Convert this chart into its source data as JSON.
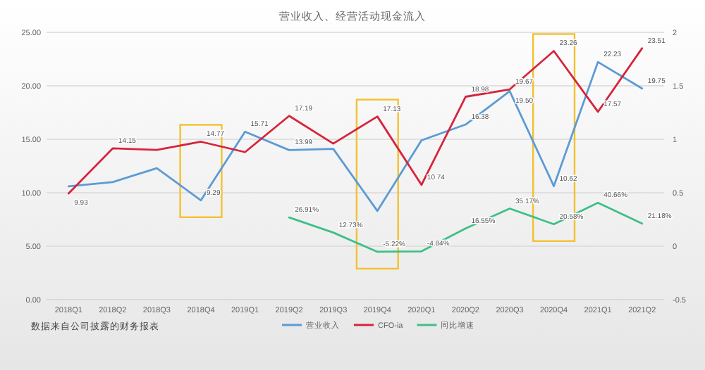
{
  "chart_data": {
    "type": "line",
    "title": "营业收入、经营活动现金流入",
    "annotations": [
      "数据来自公司披露的财务报表"
    ],
    "categories": [
      "2018Q1",
      "2018Q2",
      "2018Q3",
      "2018Q4",
      "2019Q1",
      "2019Q2",
      "2019Q3",
      "2019Q4",
      "2020Q1",
      "2020Q2",
      "2020Q3",
      "2020Q4",
      "2021Q1",
      "2021Q2"
    ],
    "ylim": [
      0,
      25
    ],
    "yticks": [
      {
        "value": 0,
        "label": "0.00"
      },
      {
        "value": 5,
        "label": "5.00"
      },
      {
        "value": 10,
        "label": "10.00"
      },
      {
        "value": 15,
        "label": "15.00"
      },
      {
        "value": 20,
        "label": "20.00"
      },
      {
        "value": 25,
        "label": "25.00"
      }
    ],
    "y2lim": [
      -0.5,
      2
    ],
    "y2ticks": [
      -0.5,
      0,
      0.5,
      1,
      1.5,
      2
    ],
    "grid": "y",
    "legend": "bottom",
    "marker": "none",
    "series": [
      {
        "name": "营业收入",
        "color": "#5b9bd5",
        "values": [
          10.6,
          11.0,
          12.3,
          9.29,
          15.71,
          13.99,
          14.1,
          8.3,
          14.9,
          16.38,
          19.5,
          10.62,
          22.23,
          19.75
        ],
        "value_labels": [
          null,
          null,
          null,
          "9.29",
          "15.71",
          "13.99",
          null,
          null,
          null,
          "16.38",
          "19.50",
          "10.62",
          "22.23",
          "19.75"
        ]
      },
      {
        "name": "CFO-ia",
        "color": "#d6243c",
        "values": [
          9.93,
          14.15,
          14.0,
          14.77,
          13.8,
          17.19,
          14.6,
          17.13,
          10.74,
          18.98,
          19.67,
          23.26,
          17.57,
          23.51
        ],
        "value_labels": [
          "9.93",
          "14.15",
          null,
          "14.77",
          null,
          "17.19",
          null,
          "17.13",
          "10.74",
          "18.98",
          "19.67",
          "23.26",
          "17.57",
          "23.51"
        ]
      },
      {
        "name": "同比增速",
        "color": "#3fbf86",
        "axis": "y2",
        "values": [
          null,
          null,
          null,
          null,
          null,
          0.2691,
          0.1273,
          -0.0522,
          -0.0484,
          0.1655,
          0.3517,
          0.2058,
          0.4066,
          0.2118
        ],
        "value_labels": [
          null,
          null,
          null,
          null,
          null,
          "26.91%",
          "12.73%",
          "-5.22%",
          "-4.84%",
          "16.55%",
          "35.17%",
          "20.58%",
          "40.66%",
          "21.18%"
        ]
      }
    ]
  }
}
